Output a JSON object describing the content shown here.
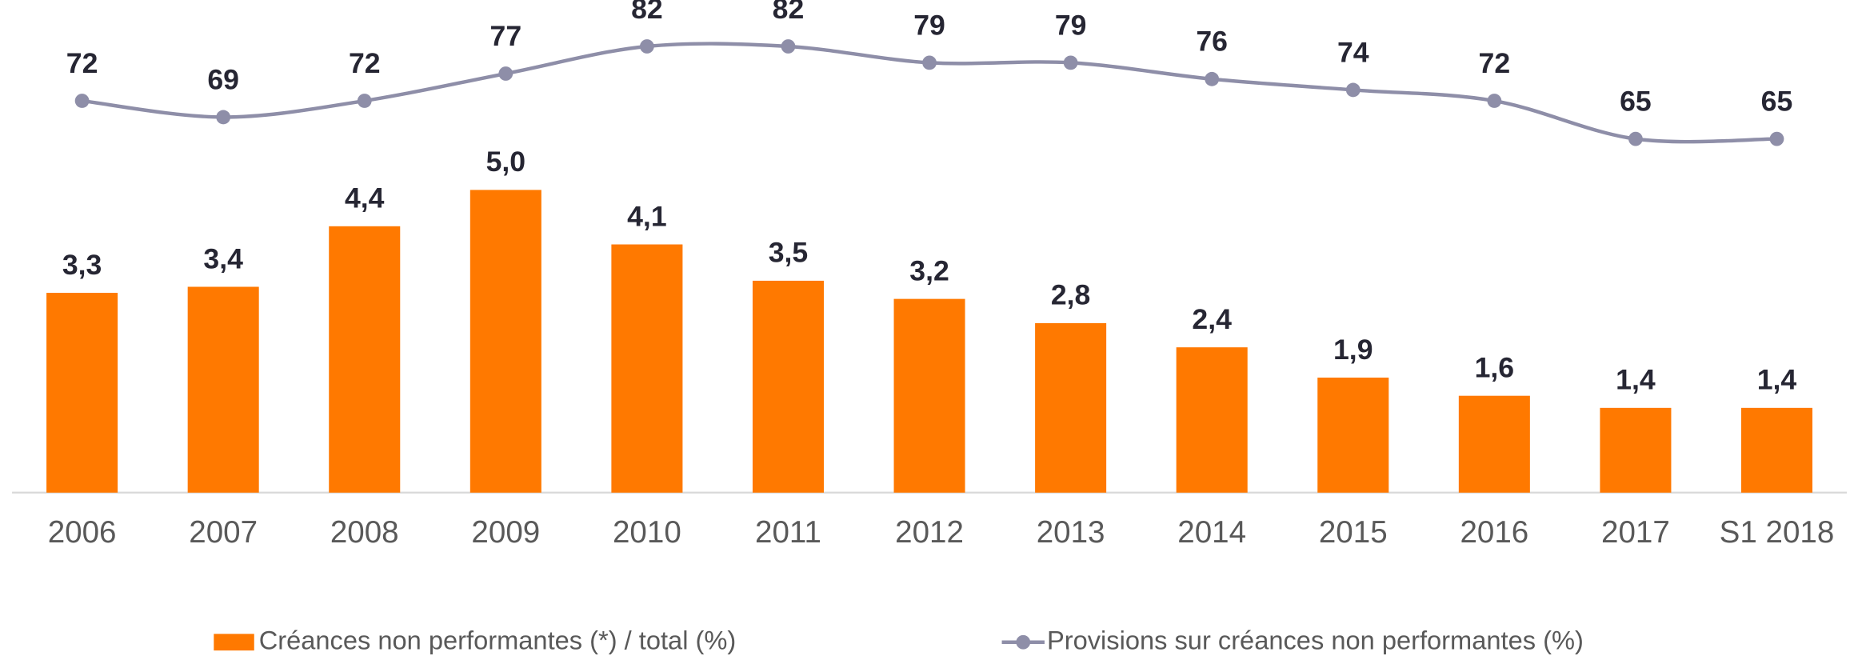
{
  "chart_data": {
    "type": "bar",
    "categories": [
      "2006",
      "2007",
      "2008",
      "2009",
      "2010",
      "2011",
      "2012",
      "2013",
      "2014",
      "2015",
      "2016",
      "2017",
      "S1 2018"
    ],
    "ylim": [
      0,
      8
    ],
    "y2lim": [
      0,
      89
    ],
    "legend": "bottom",
    "series": [
      {
        "name": "Créances non performantes (*) / total (%)",
        "type": "bar",
        "color": "#ff7900",
        "values": [
          3.3,
          3.4,
          4.4,
          5.0,
          4.1,
          3.5,
          3.2,
          2.8,
          2.4,
          1.9,
          1.6,
          1.4,
          1.4
        ],
        "value_labels": [
          "3,3",
          "3,4",
          "4,4",
          "5,0",
          "4,1",
          "3,5",
          "3,2",
          "2,8",
          "2,4",
          "1,9",
          "1,6",
          "1,4",
          "1,4"
        ]
      },
      {
        "name": "Provisions sur créances non performantes (%)",
        "type": "line",
        "axis": "y2",
        "color": "#8e8ea8",
        "values": [
          72,
          69,
          72,
          77,
          82,
          82,
          79,
          79,
          76,
          74,
          72,
          65,
          65
        ]
      }
    ]
  }
}
